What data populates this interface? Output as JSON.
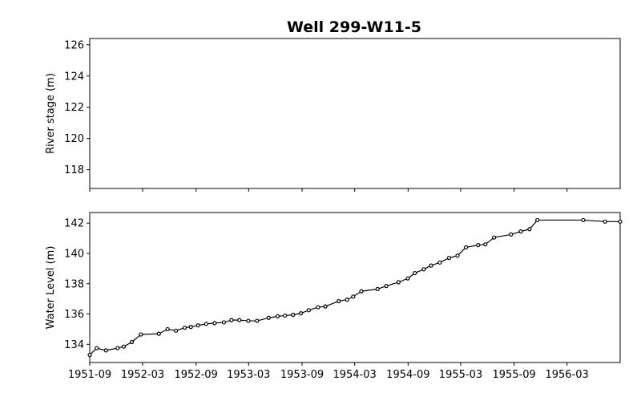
{
  "chart_data": [
    {
      "type": "line",
      "title": "Well 299-W11-5",
      "xlabel": "",
      "ylabel": "River stage (m)",
      "ylim": [
        116.8,
        126.4
      ],
      "yticks": [
        "118",
        "120",
        "122",
        "124",
        "126"
      ],
      "series": []
    },
    {
      "type": "line",
      "xlabel": "",
      "ylabel": "Water Level (m)",
      "ylim": [
        132.8,
        142.7
      ],
      "yticks": [
        "134",
        "136",
        "138",
        "140",
        "142"
      ],
      "xlim": [
        "1951-09-01",
        "1956-08-31"
      ],
      "xticks": [
        "1951-09",
        "1952-03",
        "1952-09",
        "1953-03",
        "1953-09",
        "1954-03",
        "1954-09",
        "1955-03",
        "1955-09",
        "1956-03"
      ],
      "series": [
        {
          "x": [
            "1951-09-01",
            "1951-09-25",
            "1951-10-27",
            "1951-12-06",
            "1951-12-27",
            "1952-01-24",
            "1952-02-24",
            "1952-04-26",
            "1952-05-26",
            "1952-06-24",
            "1952-07-24",
            "1952-08-14",
            "1952-09-08",
            "1952-10-06",
            "1952-11-04",
            "1952-12-06",
            "1953-01-01",
            "1953-01-28",
            "1953-02-28",
            "1953-03-30",
            "1953-05-09",
            "1953-06-09",
            "1953-07-04",
            "1953-08-01",
            "1953-08-28",
            "1953-09-24",
            "1953-10-26",
            "1953-11-20",
            "1954-01-05",
            "1954-02-03",
            "1954-02-24",
            "1954-03-24",
            "1954-05-19",
            "1954-06-18",
            "1954-07-30",
            "1954-08-31",
            "1954-09-24",
            "1954-10-25",
            "1954-11-19",
            "1954-12-19",
            "1955-01-20",
            "1955-02-18",
            "1955-03-19",
            "1955-04-30",
            "1955-05-25",
            "1955-06-24",
            "1955-08-21",
            "1955-09-24",
            "1955-10-24",
            "1955-11-20",
            "1956-04-26",
            "1956-07-10",
            "1956-08-31"
          ],
          "values": [
            133.3,
            133.75,
            133.6,
            133.75,
            133.85,
            134.15,
            134.65,
            134.7,
            135.0,
            134.9,
            135.1,
            135.15,
            135.25,
            135.35,
            135.4,
            135.45,
            135.6,
            135.6,
            135.55,
            135.55,
            135.75,
            135.85,
            135.9,
            135.95,
            136.05,
            136.25,
            136.45,
            136.5,
            136.85,
            136.95,
            137.15,
            137.5,
            137.65,
            137.85,
            138.1,
            138.35,
            138.7,
            138.95,
            139.2,
            139.4,
            139.7,
            139.85,
            140.4,
            140.55,
            140.6,
            141.05,
            141.25,
            141.45,
            141.6,
            142.2,
            142.2,
            142.1,
            142.1
          ]
        }
      ]
    }
  ]
}
